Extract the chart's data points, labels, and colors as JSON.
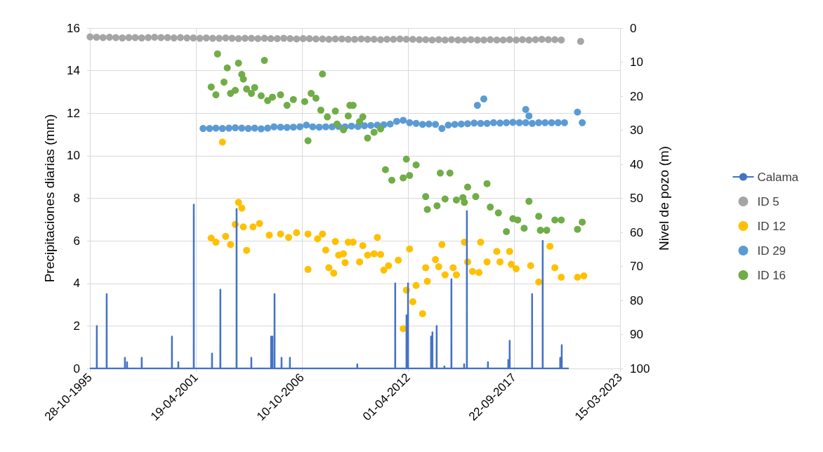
{
  "chart_data": {
    "type": "scatter",
    "ylabel": "Precipitaciones diarias (mm)",
    "y2label": "Nivel de pozo (m)",
    "xlim": [
      "1995-10-28",
      "2023-03-15"
    ],
    "xticks": [
      {
        "value": "1995-10-28",
        "label": "28-10-1995"
      },
      {
        "value": "2001-04-19",
        "label": "19-04-2001"
      },
      {
        "value": "2006-10-10",
        "label": "10-10-2006"
      },
      {
        "value": "2012-04-01",
        "label": "01-04-2012"
      },
      {
        "value": "2017-09-22",
        "label": "22-09-2017"
      },
      {
        "value": "2023-03-15",
        "label": "15-03-2023"
      }
    ],
    "ylim": [
      0,
      16
    ],
    "yticks": [
      0,
      2,
      4,
      6,
      8,
      10,
      12,
      14,
      16
    ],
    "y2lim": [
      100,
      0
    ],
    "y2ticks": [
      0,
      10,
      20,
      30,
      40,
      50,
      60,
      70,
      80,
      90,
      100
    ],
    "grid": true,
    "legend": "right",
    "marker": "circle",
    "series": [
      {
        "name": "Calama",
        "type": "line",
        "marker": "none",
        "line_style": "solid",
        "color": "#4472c4",
        "x": [
          "1995-10-28",
          "1996-03-06",
          "1996-03-07",
          "1996-03-08",
          "1996-09-08",
          "1996-09-09",
          "1996-09-10",
          "1997-08-18",
          "1997-08-19",
          "1997-08-20",
          "1997-09-27",
          "1997-09-28",
          "1997-09-29",
          "1998-07-01",
          "1998-07-02",
          "1998-07-03",
          "2000-01-22",
          "2000-01-23",
          "2000-01-24",
          "2000-05-21",
          "2000-05-22",
          "2000-05-23",
          "2001-03-09",
          "2001-03-10",
          "2001-03-11",
          "2002-02-16",
          "2002-02-17",
          "2002-02-18",
          "2002-07-23",
          "2002-07-24",
          "2002-07-25",
          "2003-05-25",
          "2003-05-26",
          "2003-05-27",
          "2004-02-27",
          "2004-02-28",
          "2004-02-29",
          "2005-03-06",
          "2005-03-07",
          "2005-03-08",
          "2005-03-31",
          "2005-04-01",
          "2005-04-02",
          "2005-05-10",
          "2005-05-11",
          "2005-05-12",
          "2005-09-19",
          "2005-09-20",
          "2005-09-21",
          "2006-02-24",
          "2006-02-25",
          "2006-02-26",
          "2009-08-18",
          "2009-08-19",
          "2009-08-20",
          "2011-08-03",
          "2011-08-04",
          "2011-08-05",
          "2012-03-03",
          "2012-03-04",
          "2012-03-05",
          "2012-04-01",
          "2012-04-02",
          "2012-04-03",
          "2013-06-09",
          "2013-06-10",
          "2013-06-11",
          "2013-07-05",
          "2013-07-06",
          "2013-07-07",
          "2013-09-23",
          "2013-09-24",
          "2013-09-25",
          "2014-02-16",
          "2014-02-17",
          "2014-02-18",
          "2014-06-28",
          "2014-06-29",
          "2014-06-30",
          "2015-02-23",
          "2015-02-24",
          "2015-02-25",
          "2015-04-16",
          "2015-04-17",
          "2015-04-18",
          "2016-05-17",
          "2016-05-18",
          "2016-05-19",
          "2017-06-05",
          "2017-06-06",
          "2017-06-07",
          "2017-07-01",
          "2017-07-02",
          "2017-07-03",
          "2018-08-28",
          "2018-08-29",
          "2018-08-30",
          "2019-03-16",
          "2019-03-17",
          "2019-03-18",
          "2020-02-09",
          "2020-02-10",
          "2020-02-11",
          "2020-03-09",
          "2020-03-10",
          "2020-03-11",
          "2020-07-20"
        ],
        "values": [
          0,
          0,
          2.0,
          0,
          0,
          3.5,
          0,
          0,
          0.5,
          0,
          0,
          0.3,
          0,
          0,
          0.5,
          0,
          0,
          1.5,
          0,
          0,
          0.3,
          0,
          0,
          7.7,
          0,
          0,
          0.7,
          0,
          0,
          3.7,
          0,
          0,
          7.5,
          0,
          0,
          0.5,
          0,
          0,
          1.5,
          0,
          0,
          1.5,
          0,
          0,
          3.5,
          0,
          0,
          0.5,
          0,
          0,
          0.5,
          0,
          0,
          0.2,
          0,
          0,
          4.0,
          0,
          0,
          2.5,
          0,
          0,
          4.0,
          0,
          0,
          1.5,
          0,
          0,
          1.7,
          0,
          0,
          2.0,
          0,
          0,
          0.1,
          0,
          0,
          4.2,
          0,
          0,
          0.2,
          0,
          0,
          7.4,
          0,
          0,
          0.3,
          0,
          0,
          0.4,
          0,
          0,
          1.3,
          0,
          0,
          3.5,
          0,
          0,
          6.0,
          0,
          0,
          0.5,
          0,
          0,
          1.1,
          0,
          0
        ]
      },
      {
        "name": "ID 5",
        "axis": "y2",
        "color": "#a5a5a5",
        "x": [
          "1995-11",
          "1996-03",
          "1996-07",
          "1996-11",
          "1997-03",
          "1997-07",
          "1997-11",
          "1998-03",
          "1998-07",
          "1998-11",
          "1999-03",
          "1999-07",
          "1999-11",
          "2000-03",
          "2000-07",
          "2000-11",
          "2001-03",
          "2001-07",
          "2001-11",
          "2002-03",
          "2002-07",
          "2002-11",
          "2003-03",
          "2003-07",
          "2003-11",
          "2004-03",
          "2004-07",
          "2004-11",
          "2005-03",
          "2005-07",
          "2005-11",
          "2006-03",
          "2006-07",
          "2006-11",
          "2007-03",
          "2007-07",
          "2007-11",
          "2008-03",
          "2008-07",
          "2008-11",
          "2009-03",
          "2009-07",
          "2009-11",
          "2010-03",
          "2010-07",
          "2010-11",
          "2011-03",
          "2011-07",
          "2011-11",
          "2012-03",
          "2012-07",
          "2012-11",
          "2013-03",
          "2013-07",
          "2013-11",
          "2014-03",
          "2014-07",
          "2014-11",
          "2015-03",
          "2015-07",
          "2015-11",
          "2016-03",
          "2016-07",
          "2016-11",
          "2017-03",
          "2017-07",
          "2017-11",
          "2018-03",
          "2018-07",
          "2018-11",
          "2019-03",
          "2019-07",
          "2019-11",
          "2020-03",
          "2021-03"
        ],
        "values": [
          2.6,
          2.7,
          2.8,
          2.7,
          2.8,
          2.9,
          2.8,
          2.8,
          2.9,
          2.8,
          2.7,
          2.8,
          2.8,
          2.9,
          2.8,
          2.9,
          2.9,
          3.0,
          2.9,
          3.0,
          3.0,
          2.9,
          3.0,
          3.1,
          3.0,
          3.0,
          3.1,
          3.0,
          3.1,
          3.1,
          3.0,
          3.1,
          3.2,
          3.1,
          3.1,
          3.2,
          3.2,
          3.3,
          3.2,
          3.2,
          3.3,
          3.3,
          3.2,
          3.3,
          3.3,
          3.4,
          3.3,
          3.3,
          3.2,
          3.3,
          3.3,
          3.4,
          3.4,
          3.5,
          3.4,
          3.5,
          3.4,
          3.5,
          3.5,
          3.4,
          3.5,
          3.5,
          3.4,
          3.5,
          3.5,
          3.4,
          3.5,
          3.4,
          3.5,
          3.4,
          3.3,
          3.4,
          3.4,
          3.5,
          3.9
        ]
      },
      {
        "name": "ID 12",
        "axis": "y2",
        "color": "#ffc000",
        "x": [
          "2002-02",
          "2002-05",
          "2002-11",
          "2003-02",
          "2002-09",
          "2003-07",
          "2003-09",
          "2003-05",
          "2003-10",
          "2003-12",
          "2004-04",
          "2004-08",
          "2005-02",
          "2005-09",
          "2006-02",
          "2006-07",
          "2007-02",
          "2007-08",
          "2007-11",
          "2007-02",
          "2008-01",
          "2008-07",
          "2008-03",
          "2008-06",
          "2008-09",
          "2008-12",
          "2009-01",
          "2009-03",
          "2009-06",
          "2009-12",
          "2009-10",
          "2010-03",
          "2010-07",
          "2010-11",
          "2010-09",
          "2011-01",
          "2011-04",
          "2011-10",
          "2012-01",
          "2012-03",
          "2012-05",
          "2012-07",
          "2012-09",
          "2013-01",
          "2013-04",
          "2013-03",
          "2013-09",
          "2013-11",
          "2014-01",
          "2014-03",
          "2014-08",
          "2014-10",
          "2015-03",
          "2015-05",
          "2015-08",
          "2015-12",
          "2016-01",
          "2016-05",
          "2016-11",
          "2017-01",
          "2017-07",
          "2017-08",
          "2017-11",
          "2018-08",
          "2019-01",
          "2019-08",
          "2019-11",
          "2020-03",
          "2021-01",
          "2021-05"
        ],
        "values": [
          61.7,
          62.9,
          61.2,
          63.6,
          33.5,
          51.2,
          52.9,
          57.7,
          58.4,
          65.3,
          58.4,
          57.4,
          60.8,
          60.5,
          61.5,
          60.1,
          60.5,
          61.9,
          60.5,
          70.9,
          65.2,
          62.7,
          70.4,
          72.0,
          66.7,
          66.3,
          68.9,
          62.9,
          62.9,
          63.9,
          68.7,
          66.7,
          66.3,
          66.5,
          61.5,
          71.1,
          69.8,
          68.2,
          88.3,
          77.0,
          64.9,
          80.4,
          75.6,
          83.9,
          74.4,
          70.4,
          68.0,
          70.1,
          63.6,
          72.5,
          70.4,
          72.5,
          62.9,
          68.7,
          71.5,
          71.8,
          62.9,
          68.7,
          65.6,
          68.7,
          65.6,
          69.4,
          70.7,
          69.8,
          74.6,
          64.1,
          70.4,
          73.2,
          73.2,
          72.8
        ]
      },
      {
        "name": "ID 29",
        "axis": "y2",
        "color": "#5b9bd5",
        "x": [
          "2001-09",
          "2002-01",
          "2002-05",
          "2002-09",
          "2003-01",
          "2003-05",
          "2003-09",
          "2004-01",
          "2004-05",
          "2004-09",
          "2005-01",
          "2005-05",
          "2005-09",
          "2006-01",
          "2006-05",
          "2006-09",
          "2007-01",
          "2007-05",
          "2007-09",
          "2008-01",
          "2008-05",
          "2008-09",
          "2009-01",
          "2009-05",
          "2009-09",
          "2010-01",
          "2010-05",
          "2010-09",
          "2011-01",
          "2011-05",
          "2011-09",
          "2012-01",
          "2012-05",
          "2012-09",
          "2013-01",
          "2013-05",
          "2013-09",
          "2014-01",
          "2014-05",
          "2014-09",
          "2015-01",
          "2015-05",
          "2015-09",
          "2016-01",
          "2016-05",
          "2016-09",
          "2017-01",
          "2017-05",
          "2017-09",
          "2018-01",
          "2018-05",
          "2018-09",
          "2019-01",
          "2019-05",
          "2019-09",
          "2020-01",
          "2020-05",
          "2015-11",
          "2016-03",
          "2018-05",
          "2018-07",
          "2021-01",
          "2021-04"
        ],
        "values": [
          29.5,
          29.5,
          29.4,
          29.5,
          29.4,
          29.3,
          29.4,
          29.5,
          29.4,
          29.6,
          29.4,
          29.0,
          29.1,
          29.2,
          29.1,
          29.0,
          28.5,
          29.0,
          29.1,
          29.0,
          29.0,
          28.9,
          29.0,
          28.8,
          28.9,
          28.7,
          28.6,
          28.5,
          28.4,
          28.2,
          27.4,
          27.1,
          27.8,
          28.0,
          28.3,
          28.2,
          28.3,
          29.5,
          28.5,
          28.3,
          28.2,
          28.1,
          27.9,
          28.0,
          28.0,
          27.8,
          27.9,
          27.8,
          27.7,
          27.8,
          27.8,
          28.0,
          27.8,
          27.8,
          27.8,
          27.8,
          27.8,
          22.7,
          20.8,
          23.9,
          25.8,
          24.7,
          27.8
        ]
      },
      {
        "name": "ID 16",
        "axis": "y2",
        "color": "#70ad47",
        "x": [
          "2002-02",
          "2002-05",
          "2002-06",
          "2002-10",
          "2002-12",
          "2003-02",
          "2003-05",
          "2003-07",
          "2003-09",
          "2003-10",
          "2003-12",
          "2004-03",
          "2004-05",
          "2004-11",
          "2004-09",
          "2005-01",
          "2005-04",
          "2005-09",
          "2006-01",
          "2006-05",
          "2006-12",
          "2007-04",
          "2007-07",
          "2007-11",
          "2007-02",
          "2007-10",
          "2008-02",
          "2008-07",
          "2008-08",
          "2008-12",
          "2009-04",
          "2009-03",
          "2009-06",
          "2009-12",
          "2009-10",
          "2010-03",
          "2010-07",
          "2010-11",
          "2011-02",
          "2011-06",
          "2012-01",
          "2012-05",
          "2012-03",
          "2012-09",
          "2013-03",
          "2013-04",
          "2013-10",
          "2013-12",
          "2014-06",
          "2014-03",
          "2014-10",
          "2015-02",
          "2015-05",
          "2015-03",
          "2015-10",
          "2016-05",
          "2016-07",
          "2016-12",
          "2017-05",
          "2017-09",
          "2017-12",
          "2018-04",
          "2018-07",
          "2019-01",
          "2019-02",
          "2019-06",
          "2019-11",
          "2020-03",
          "2021-01",
          "2021-04"
        ],
        "values": [
          17.3,
          19.6,
          7.6,
          15.9,
          11.7,
          19.2,
          18.3,
          10.3,
          13.6,
          15.0,
          17.9,
          19.2,
          17.5,
          9.5,
          19.9,
          21.3,
          20.3,
          19.6,
          22.7,
          21.0,
          21.6,
          19.2,
          20.6,
          13.5,
          33.1,
          24.1,
          26.1,
          24.4,
          28.2,
          29.9,
          22.7,
          25.8,
          22.7,
          26.1,
          27.5,
          32.3,
          30.6,
          29.6,
          41.6,
          44.7,
          44.0,
          43.3,
          38.5,
          40.2,
          49.5,
          53.3,
          52.2,
          42.6,
          42.6,
          50.2,
          50.5,
          49.8,
          46.7,
          51.2,
          49.5,
          45.7,
          52.6,
          54.3,
          59.8,
          56.0,
          56.4,
          58.8,
          50.9,
          55.3,
          59.4,
          59.4,
          56.4,
          56.4,
          59.1,
          57.0
        ]
      }
    ]
  }
}
